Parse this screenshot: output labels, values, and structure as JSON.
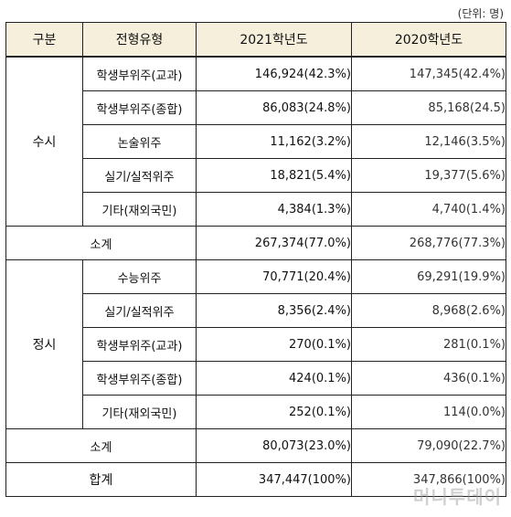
{
  "unit_note": "(단위: 명)",
  "headers": {
    "category": "구분",
    "type": "전형유형",
    "y2021": "2021학년도",
    "y2020": "2020학년도"
  },
  "susi": {
    "label": "수시",
    "rows": [
      {
        "type": "학생부위주(교과)",
        "y2021": "146,924(42.3%)",
        "y2020": "147,345(42.4%)"
      },
      {
        "type": "학생부위주(종합)",
        "y2021": "86,083(24.8%)",
        "y2020": "85,168(24.5)"
      },
      {
        "type": "논술위주",
        "y2021": "11,162(3.2%)",
        "y2020": "12,146(3.5%)"
      },
      {
        "type": "실기/실적위주",
        "y2021": "18,821(5.4%)",
        "y2020": "19,377(5.6%)"
      },
      {
        "type": "기타(재외국민)",
        "y2021": "4,384(1.3%)",
        "y2020": "4,740(1.4%)"
      }
    ],
    "subtotal_label": "소계",
    "subtotal_2021": "267,374(77.0%)",
    "subtotal_2020": "268,776(77.3%)"
  },
  "jeongsi": {
    "label": "정시",
    "rows": [
      {
        "type": "수능위주",
        "y2021": "70,771(20.4%)",
        "y2020": "69,291(19.9%)"
      },
      {
        "type": "실기/실적위주",
        "y2021": "8,356(2.4%)",
        "y2020": "8,968(2.6%)"
      },
      {
        "type": "학생부위주(교과)",
        "y2021": "270(0.1%)",
        "y2020": "281(0.1%)"
      },
      {
        "type": "학생부위주(종합)",
        "y2021": "424(0.1%)",
        "y2020": "436(0.1%)"
      },
      {
        "type": "기타(재외국민)",
        "y2021": "252(0.1%)",
        "y2020": "114(0.0%)"
      }
    ],
    "subtotal_label": "소계",
    "subtotal_2021": "80,073(23.0%)",
    "subtotal_2020": "79,090(22.7%)"
  },
  "total": {
    "label": "합계",
    "y2021": "347,447(100%)",
    "y2020": "347,866(100%)"
  },
  "watermark": "머니투데이"
}
